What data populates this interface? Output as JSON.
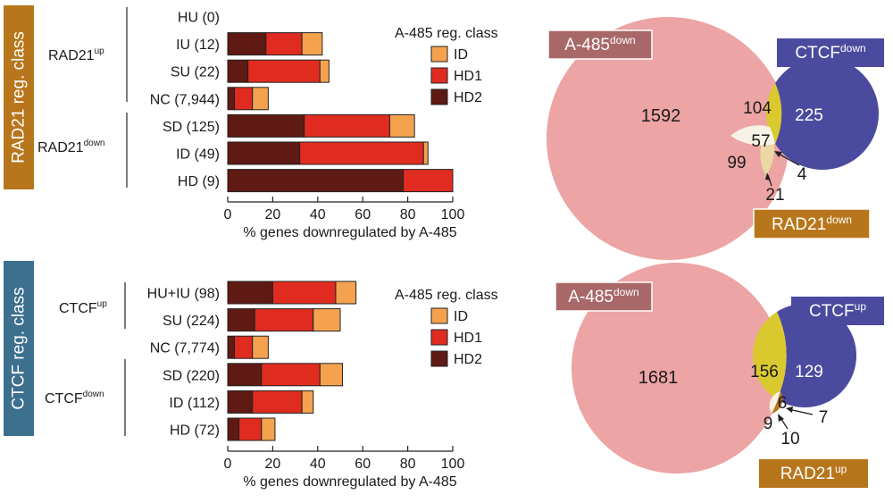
{
  "colors": {
    "ID": "#f5a24f",
    "HD1": "#e02c20",
    "HD2": "#5e1a13",
    "rad21_box": "#b8761c",
    "ctcf_box": "#3d6f8e",
    "a485_circle": "#eda4a4",
    "a485_label": "#a86868",
    "ctcf_circle": "#4a4a9e",
    "ctcf_a485": "#d9c92e",
    "rad21_circle": "#b8761c",
    "rad21_a485": "#ecd8a4",
    "triple": "#f7f2e6"
  },
  "chart_data": [
    {
      "type": "bar",
      "stacked": true,
      "orientation": "horizontal",
      "side_label": "RAD21 reg. class",
      "groups": [
        {
          "name": "RAD21",
          "sup": "up",
          "members": [
            "HU (0)",
            "IU (12)",
            "SU (22)"
          ]
        },
        {
          "name": "RAD21",
          "sup": "down",
          "members": [
            "SD (125)",
            "ID (49)",
            "HD (9)"
          ]
        }
      ],
      "categories": [
        "HU (0)",
        "IU (12)",
        "SU (22)",
        "NC (7,944)",
        "SD (125)",
        "ID (49)",
        "HD (9)"
      ],
      "series": [
        {
          "name": "HD2",
          "values": [
            0,
            17,
            9,
            3,
            34,
            32,
            78
          ]
        },
        {
          "name": "HD1",
          "values": [
            0,
            16,
            32,
            8,
            38,
            55,
            22
          ]
        },
        {
          "name": "ID",
          "values": [
            0,
            9,
            4,
            7,
            11,
            2,
            0
          ]
        }
      ],
      "legend_title": "A-485 reg. class",
      "legend": [
        "ID",
        "HD1",
        "HD2"
      ],
      "xlabel": "% genes downregulated by A-485",
      "xlim": [
        0,
        100
      ],
      "xticks": [
        0,
        20,
        40,
        60,
        80,
        100
      ]
    },
    {
      "type": "bar",
      "stacked": true,
      "orientation": "horizontal",
      "side_label": "CTCF reg. class",
      "groups": [
        {
          "name": "CTCF",
          "sup": "up",
          "members": [
            "HU+IU (98)",
            "SU (224)"
          ]
        },
        {
          "name": "CTCF",
          "sup": "down",
          "members": [
            "SD (220)",
            "ID (112)",
            "HD (72)"
          ]
        }
      ],
      "categories": [
        "HU+IU (98)",
        "SU (224)",
        "NC (7,774)",
        "SD (220)",
        "ID (112)",
        "HD (72)"
      ],
      "series": [
        {
          "name": "HD2",
          "values": [
            20,
            12,
            3,
            15,
            11,
            5
          ]
        },
        {
          "name": "HD1",
          "values": [
            28,
            26,
            8,
            26,
            22,
            10
          ]
        },
        {
          "name": "ID",
          "values": [
            9,
            12,
            7,
            10,
            5,
            6
          ]
        }
      ],
      "legend_title": "A-485 reg. class",
      "legend": [
        "ID",
        "HD1",
        "HD2"
      ],
      "xlabel": "% genes downregulated by A-485",
      "xlim": [
        0,
        100
      ],
      "xticks": [
        0,
        20,
        40,
        60,
        80,
        100
      ]
    },
    {
      "type": "venn",
      "sets": [
        {
          "name": "A-485",
          "sup": "down"
        },
        {
          "name": "CTCF",
          "sup": "down"
        },
        {
          "name": "RAD21",
          "sup": "down"
        }
      ],
      "regions": {
        "a485_only": "1592",
        "ctcf_a485": "104",
        "ctcf_only": "225",
        "triple": "57",
        "rad21_a485": "99",
        "ctcf_rad21": "4",
        "rad21_only": "21"
      }
    },
    {
      "type": "venn",
      "sets": [
        {
          "name": "A-485",
          "sup": "down"
        },
        {
          "name": "CTCF",
          "sup": "up"
        },
        {
          "name": "RAD21",
          "sup": "up"
        }
      ],
      "regions": {
        "a485_only": "1681",
        "ctcf_a485": "156",
        "ctcf_only": "129",
        "triple": "6",
        "rad21_a485": "9",
        "ctcf_rad21": "7",
        "rad21_only": "10"
      }
    }
  ]
}
